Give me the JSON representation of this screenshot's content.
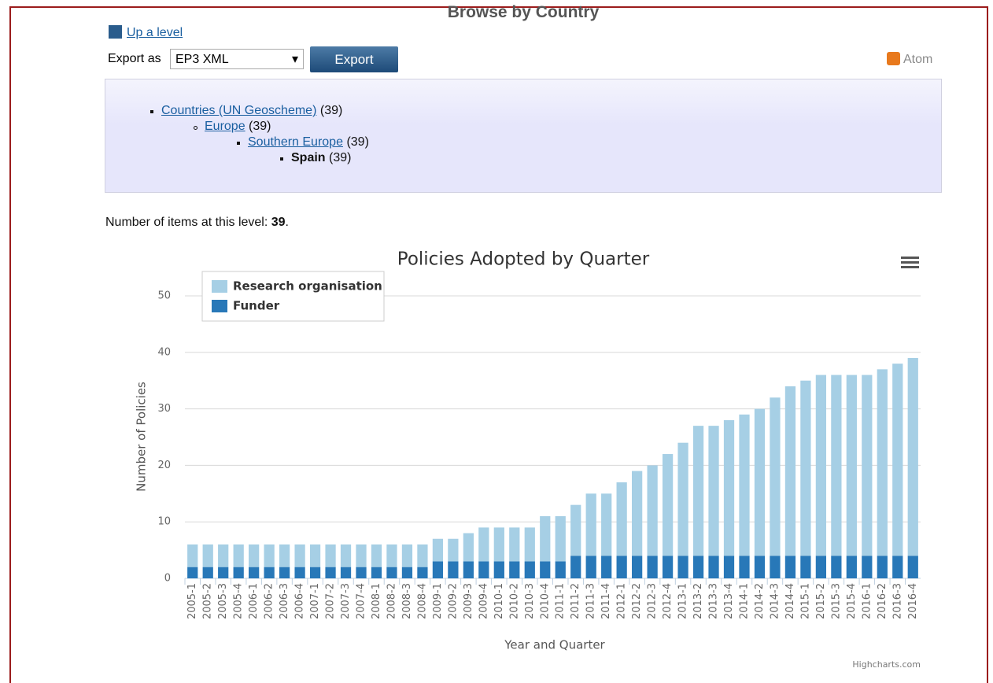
{
  "header": {
    "title": "Browse by Country",
    "up_level": "Up a level",
    "export_label": "Export as",
    "export_format": "EP3 XML",
    "export_button": "Export",
    "atom": "Atom"
  },
  "breadcrumbs": [
    {
      "name": "Countries (UN Geoscheme)",
      "count": "(39)"
    },
    {
      "name": "Europe",
      "count": "(39)"
    },
    {
      "name": "Southern Europe",
      "count": "(39)"
    },
    {
      "name": "Spain",
      "count": "(39)"
    }
  ],
  "items": {
    "label": "Number of items at this level:",
    "count": 39,
    "suffix": "."
  },
  "chart_data": {
    "type": "stacked_bar",
    "title": "Policies Adopted by Quarter",
    "x_label": "Year and Quarter",
    "y_label": "Number of Policies",
    "credit": "Highcharts.com",
    "categories": [
      "2005-1",
      "2005-2",
      "2005-3",
      "2005-4",
      "2006-1",
      "2006-2",
      "2006-3",
      "2006-4",
      "2007-1",
      "2007-2",
      "2007-3",
      "2007-4",
      "2008-1",
      "2008-2",
      "2008-3",
      "2008-4",
      "2009-1",
      "2009-2",
      "2009-3",
      "2009-4",
      "2010-1",
      "2010-2",
      "2010-3",
      "2010-4",
      "2011-1",
      "2011-2",
      "2011-3",
      "2011-4",
      "2012-1",
      "2012-2",
      "2012-3",
      "2012-4",
      "2013-1",
      "2013-2",
      "2013-3",
      "2013-4",
      "2014-1",
      "2014-2",
      "2014-3",
      "2014-4",
      "2015-1",
      "2015-2",
      "2015-3",
      "2015-4",
      "2016-1",
      "2016-2",
      "2016-3",
      "2016-4"
    ],
    "series": [
      {
        "name": "Research organisation",
        "color": "#a6cfe5",
        "values": [
          4,
          4,
          4,
          4,
          4,
          4,
          4,
          4,
          4,
          4,
          4,
          4,
          4,
          4,
          4,
          4,
          4,
          4,
          5,
          6,
          6,
          6,
          6,
          8,
          8,
          9,
          11,
          11,
          13,
          15,
          16,
          18,
          20,
          23,
          23,
          24,
          25,
          26,
          28,
          30,
          31,
          32,
          32,
          32,
          32,
          33,
          34,
          35
        ]
      },
      {
        "name": "Funder",
        "color": "#2878b8",
        "values": [
          2,
          2,
          2,
          2,
          2,
          2,
          2,
          2,
          2,
          2,
          2,
          2,
          2,
          2,
          2,
          2,
          3,
          3,
          3,
          3,
          3,
          3,
          3,
          3,
          3,
          4,
          4,
          4,
          4,
          4,
          4,
          4,
          4,
          4,
          4,
          4,
          4,
          4,
          4,
          4,
          4,
          4,
          4,
          4,
          4,
          4,
          4,
          4
        ]
      }
    ],
    "ylim": [
      0,
      50
    ],
    "yticks": [
      0,
      10,
      20,
      30,
      40,
      50
    ],
    "grid": true,
    "legend": "top-left"
  }
}
